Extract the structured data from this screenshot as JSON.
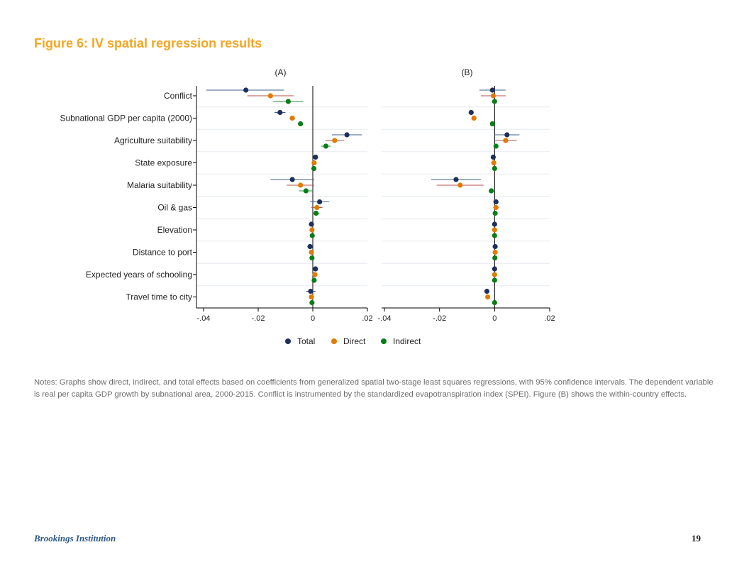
{
  "figure_title": "Figure 6: IV spatial regression results",
  "notes": "Notes: Graphs show direct, indirect, and total effects based on coefficients from generalized spatial two-stage least squares regressions, with 95% confidence intervals. The dependent variable is real per capita GDP growth by subnational area, 2000-2015. Conflict is instrumented by the standardized evapotranspiration index (SPEI). Figure (B) shows the within-country effects.",
  "footer": {
    "institution": "Brookings Institution",
    "page_number": "19"
  },
  "colors": {
    "title": "#f5a623",
    "total": "#1f2f5c",
    "direct": "#e07b00",
    "indirect": "#0a7d17",
    "total_ci": "#3b5f8a",
    "direct_ci": "#b84c4c",
    "indirect_ci": "#2e8b3a"
  },
  "chart_data": {
    "type": "scatter",
    "subtype": "coefficient plot with 95% confidence intervals",
    "title": "Figure 6: IV spatial regression results",
    "variables": [
      "Conflict",
      "Subnational GDP per capita (2000)",
      "Agriculture suitability",
      "State exposure",
      "Malaria suitability",
      "Oil & gas",
      "Elevation",
      "Distance to port",
      "Expected years of schooling",
      "Travel time to city"
    ],
    "xlim": [
      -0.04,
      0.02
    ],
    "x_ticks": [
      -0.04,
      -0.02,
      0,
      0.02
    ],
    "x_tick_labels": [
      "-.04",
      "-.02",
      "0",
      ".02"
    ],
    "legend": [
      "Total",
      "Direct",
      "Indirect"
    ],
    "legend_position": "bottom",
    "panels": [
      {
        "label": "(A)",
        "series": [
          {
            "name": "Total",
            "values": [
              -0.0245,
              -0.012,
              0.0125,
              0.001,
              -0.0075,
              0.0025,
              -0.0005,
              -0.001,
              0.001,
              -0.0008
            ],
            "ci_low": [
              -0.039,
              -0.014,
              0.007,
              0.0005,
              -0.0155,
              -0.001,
              -0.0015,
              -0.002,
              0.0005,
              -0.0025
            ],
            "ci_high": [
              -0.0105,
              -0.01,
              0.018,
              0.0015,
              0.0005,
              0.006,
              0.0005,
              0.0,
              0.0015,
              0.001
            ]
          },
          {
            "name": "Direct",
            "values": [
              -0.0155,
              -0.0075,
              0.008,
              0.0005,
              -0.0045,
              0.0015,
              -0.0003,
              -0.0005,
              0.0008,
              -0.0005
            ],
            "ci_low": [
              -0.024,
              -0.0085,
              0.0045,
              0.0,
              -0.0095,
              -0.0005,
              -0.001,
              -0.001,
              0.0003,
              -0.0015
            ],
            "ci_high": [
              -0.007,
              -0.0065,
              0.0115,
              0.001,
              0.0005,
              0.0035,
              0.0004,
              0.0,
              0.0013,
              0.0005
            ]
          },
          {
            "name": "Indirect",
            "values": [
              -0.009,
              -0.0045,
              0.0048,
              0.0004,
              -0.0025,
              0.0012,
              -0.0002,
              -0.0003,
              0.0005,
              -0.0003
            ],
            "ci_low": [
              -0.0145,
              -0.0055,
              0.003,
              0.0,
              -0.005,
              0.0,
              -0.0008,
              -0.0008,
              0.0001,
              -0.001
            ],
            "ci_high": [
              -0.0035,
              -0.0035,
              0.0066,
              0.0008,
              0.0,
              0.0024,
              0.0004,
              0.0002,
              0.0009,
              0.0004
            ]
          }
        ]
      },
      {
        "label": "(B)",
        "series": [
          {
            "name": "Total",
            "values": [
              -0.0008,
              -0.0085,
              0.0045,
              -0.0005,
              -0.014,
              0.0005,
              0.0,
              0.0002,
              0.0,
              -0.0028
            ],
            "ci_low": [
              -0.0055,
              -0.009,
              0.0,
              -0.001,
              -0.023,
              -0.0005,
              -0.0005,
              -0.0003,
              -0.0003,
              -0.0035
            ],
            "ci_high": [
              0.004,
              -0.008,
              0.009,
              0.0,
              -0.005,
              0.0015,
              0.0005,
              0.0007,
              0.0003,
              -0.0021
            ]
          },
          {
            "name": "Direct",
            "values": [
              -0.0005,
              -0.0075,
              0.004,
              -0.0003,
              -0.0125,
              0.0005,
              0.0,
              0.0002,
              0.0,
              -0.0025
            ],
            "ci_low": [
              -0.005,
              -0.008,
              0.0,
              -0.0008,
              -0.021,
              -0.0005,
              -0.0004,
              -0.0002,
              -0.0003,
              -0.0031
            ],
            "ci_high": [
              0.004,
              -0.007,
              0.008,
              0.0002,
              -0.004,
              0.0015,
              0.0004,
              0.0006,
              0.0003,
              -0.0019
            ]
          },
          {
            "name": "Indirect",
            "values": [
              0.0,
              -0.0008,
              0.0005,
              0.0,
              -0.0012,
              0.0002,
              0.0,
              0.0001,
              0.0,
              0.0
            ],
            "ci_low": [
              -0.0003,
              -0.001,
              0.0002,
              -0.0002,
              -0.0016,
              0.0,
              -0.0002,
              -0.0001,
              -0.0002,
              -0.0002
            ],
            "ci_high": [
              0.0003,
              -0.0006,
              0.0008,
              0.0002,
              -0.0008,
              0.0004,
              0.0002,
              0.0003,
              0.0002,
              0.0002
            ]
          }
        ]
      }
    ]
  }
}
